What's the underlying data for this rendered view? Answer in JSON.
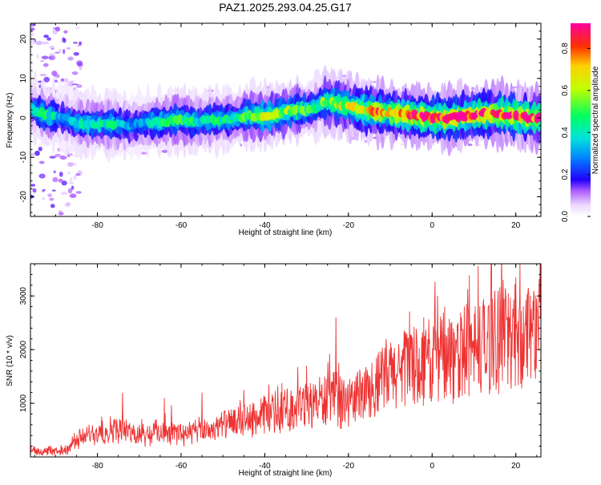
{
  "title": "PAZ1.2025.293.04.25.G17",
  "chart_data": [
    {
      "type": "heatmap",
      "title": "PAZ1.2025.293.04.25.G17",
      "xlabel": "Height of straight line (km)",
      "ylabel": "Frequency (Hz)",
      "xlim": [
        -96,
        26
      ],
      "ylim": [
        -25,
        24
      ],
      "xticks": [
        -80,
        -60,
        -40,
        -20,
        0,
        20
      ],
      "xtick_labels": [
        "-80",
        "-60",
        "-40",
        "-20",
        "0",
        "20"
      ],
      "yticks": [
        -20,
        -10,
        0,
        10,
        20
      ],
      "ytick_labels": [
        "-20",
        "-10",
        "0",
        "10",
        "20"
      ],
      "colorbar": {
        "label": "Normalized spectral amplitude",
        "range": [
          0.0,
          0.92
        ],
        "ticks": [
          0.0,
          0.2,
          0.4,
          0.6,
          0.8
        ],
        "tick_labels": [
          "0.0",
          "0.2",
          "0.4",
          "0.6",
          "0.8"
        ]
      },
      "ridge": {
        "x": [
          -96,
          -92,
          -88,
          -84,
          -80,
          -76,
          -72,
          -68,
          -64,
          -60,
          -56,
          -52,
          -48,
          -44,
          -40,
          -36,
          -32,
          -28,
          -26,
          -24,
          -20,
          -16,
          -12,
          -8,
          -4,
          0,
          4,
          8,
          12,
          16,
          20,
          24,
          26
        ],
        "freq": [
          2.5,
          0.5,
          0.0,
          -1.5,
          -1.5,
          -1.5,
          -2.0,
          -1.2,
          -1.0,
          -0.5,
          -1.0,
          -0.5,
          -0.2,
          0.5,
          0.5,
          1.2,
          2.0,
          2.5,
          4.0,
          3.8,
          3.0,
          2.0,
          1.5,
          1.0,
          0.5,
          0.0,
          0.0,
          0.5,
          1.0,
          1.0,
          0.5,
          0.0,
          0.0
        ],
        "amp": [
          0.35,
          0.45,
          0.3,
          0.4,
          0.45,
          0.42,
          0.3,
          0.35,
          0.45,
          0.5,
          0.4,
          0.45,
          0.42,
          0.48,
          0.6,
          0.58,
          0.55,
          0.45,
          0.55,
          0.6,
          0.62,
          0.7,
          0.78,
          0.82,
          0.86,
          0.88,
          0.85,
          0.88,
          0.84,
          0.86,
          0.88,
          0.85,
          0.82
        ]
      }
    },
    {
      "type": "line",
      "title": "",
      "xlabel": "Height of straight line (km)",
      "ylabel": "SNR (10 * v/v)",
      "xlim": [
        -96,
        26
      ],
      "ylim": [
        0,
        3600
      ],
      "xticks": [
        -80,
        -60,
        -40,
        -20,
        0,
        20
      ],
      "xtick_labels": [
        "-80",
        "-60",
        "-40",
        "-20",
        "0",
        "20"
      ],
      "yticks": [
        1000,
        2000,
        3000
      ],
      "ytick_labels": [
        "1000",
        "2000",
        "3000"
      ],
      "series": [
        {
          "name": "SNR",
          "color": "#ee3333",
          "x": [
            -96,
            -92,
            -88,
            -86,
            -84,
            -82,
            -80,
            -78,
            -76,
            -74,
            -72,
            -70,
            -68,
            -66,
            -64,
            -62,
            -60,
            -58,
            -56,
            -54,
            -52,
            -50,
            -48,
            -46,
            -44,
            -42,
            -40,
            -38,
            -36,
            -34,
            -32,
            -30,
            -28,
            -26,
            -24,
            -22,
            -20,
            -18,
            -16,
            -14,
            -12,
            -10,
            -8,
            -6,
            -4,
            -2,
            0,
            2,
            4,
            6,
            8,
            10,
            12,
            14,
            16,
            18,
            20,
            22,
            24,
            26
          ],
          "mean": [
            150,
            100,
            120,
            250,
            350,
            400,
            480,
            500,
            520,
            480,
            450,
            420,
            430,
            450,
            460,
            450,
            440,
            460,
            480,
            500,
            520,
            600,
            600,
            650,
            700,
            700,
            780,
            800,
            850,
            880,
            900,
            950,
            1000,
            1050,
            1100,
            1050,
            1000,
            1100,
            1200,
            1300,
            1400,
            1500,
            1600,
            1650,
            1700,
            1750,
            1800,
            1850,
            1900,
            1900,
            1950,
            2000,
            2050,
            2100,
            2150,
            2200,
            2250,
            2300,
            2350,
            2400
          ],
          "peaks": [
            {
              "x": -74,
              "y": 1200
            },
            {
              "x": -64,
              "y": 1100
            },
            {
              "x": -55,
              "y": 1200
            },
            {
              "x": -45,
              "y": 1250
            },
            {
              "x": -39,
              "y": 1350
            },
            {
              "x": -30,
              "y": 1700
            },
            {
              "x": -28,
              "y": 1250
            },
            {
              "x": -23,
              "y": 2600
            },
            {
              "x": -11,
              "y": 2200
            },
            {
              "x": -8,
              "y": 2100
            },
            {
              "x": -2,
              "y": 2600
            },
            {
              "x": 3,
              "y": 2800
            },
            {
              "x": 7,
              "y": 2600
            },
            {
              "x": 11,
              "y": 3550
            },
            {
              "x": 15,
              "y": 3100
            },
            {
              "x": 17,
              "y": 3300
            },
            {
              "x": 20,
              "y": 3350
            },
            {
              "x": 21,
              "y": 3600
            },
            {
              "x": 23,
              "y": 3150
            },
            {
              "x": 25,
              "y": 2950
            }
          ]
        }
      ]
    }
  ]
}
